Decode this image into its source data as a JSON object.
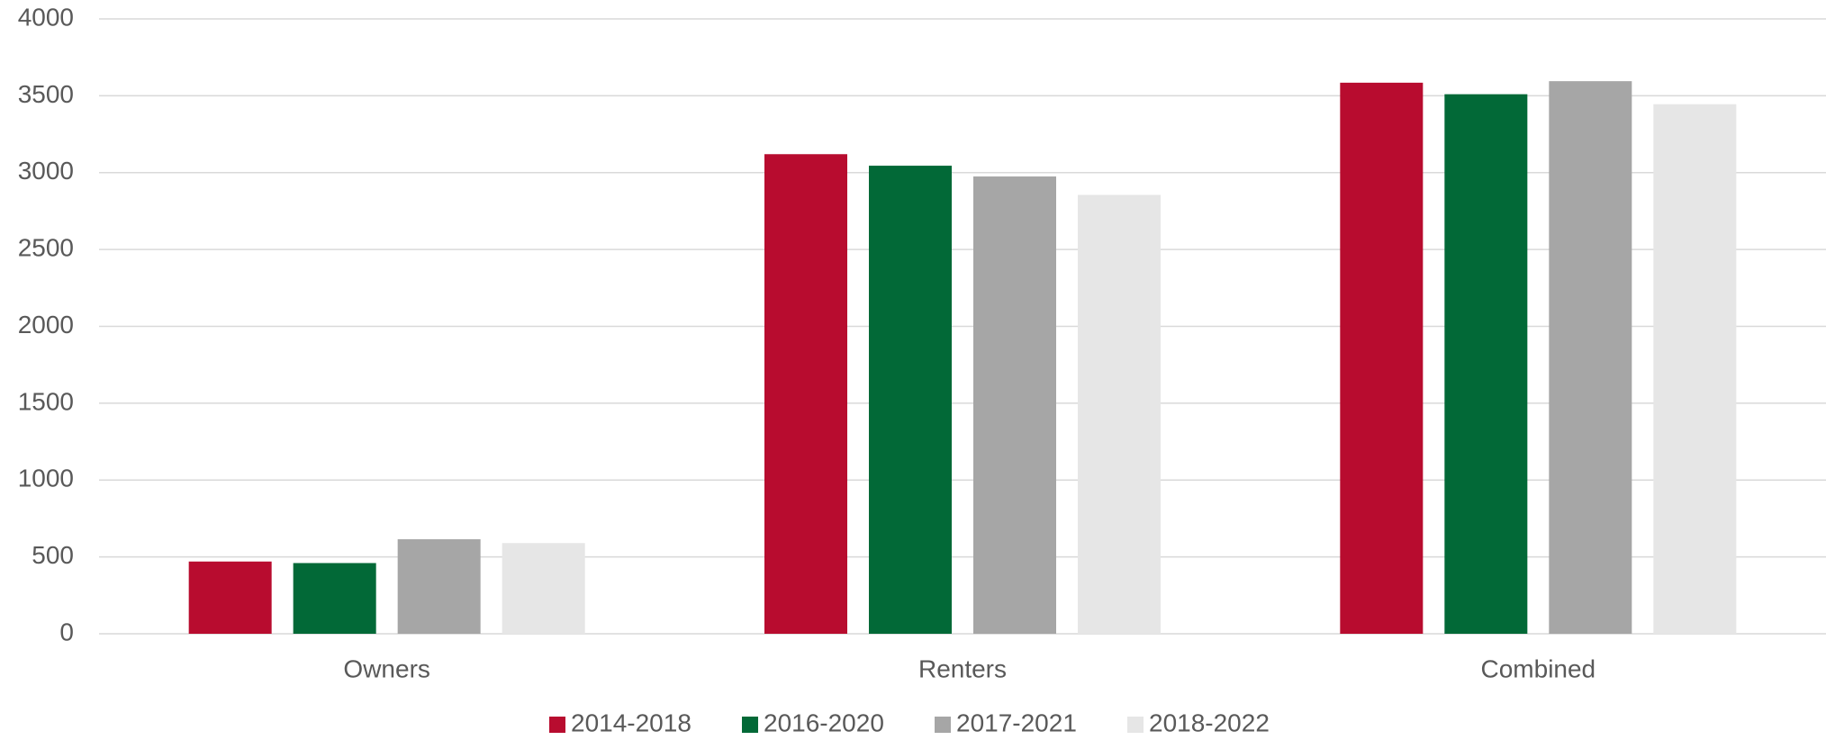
{
  "chart_data": {
    "type": "bar",
    "categories": [
      "Owners",
      "Renters",
      "Combined"
    ],
    "series": [
      {
        "name": "2014-2018",
        "color": "#b80c2f",
        "values": [
          470,
          3120,
          3585
        ]
      },
      {
        "name": "2016-2020",
        "color": "#026937",
        "values": [
          460,
          3045,
          3510
        ]
      },
      {
        "name": "2017-2021",
        "color": "#a6a6a6",
        "values": [
          615,
          2975,
          3595
        ]
      },
      {
        "name": "2018-2022",
        "color": "#e6e6e6",
        "values": [
          590,
          2855,
          3445
        ]
      }
    ],
    "ylim": [
      0,
      4000
    ],
    "yticks": [
      0,
      500,
      1000,
      1500,
      2000,
      2500,
      3000,
      3500,
      4000
    ],
    "grid": true,
    "legend": "bottom"
  }
}
